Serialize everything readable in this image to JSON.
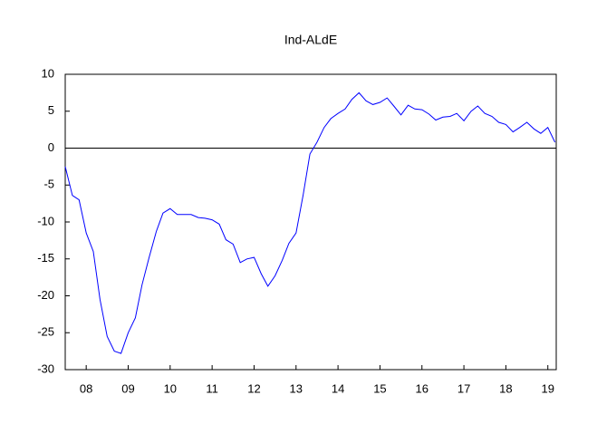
{
  "chart_data": {
    "type": "line",
    "title": "Ind-ALdE",
    "x": [
      2008,
      2008.17,
      2008.33,
      2008.5,
      2008.67,
      2008.83,
      2009,
      2009.17,
      2009.33,
      2009.5,
      2009.67,
      2009.83,
      2010,
      2010.17,
      2010.33,
      2010.5,
      2010.67,
      2010.83,
      2011,
      2011.17,
      2011.33,
      2011.5,
      2011.67,
      2011.83,
      2012,
      2012.17,
      2012.33,
      2012.5,
      2012.67,
      2012.83,
      2013,
      2013.17,
      2013.33,
      2013.5,
      2013.67,
      2013.83,
      2014,
      2014.17,
      2014.33,
      2014.5,
      2014.67,
      2014.83,
      2015,
      2015.17,
      2015.33,
      2015.5,
      2015.67,
      2015.83,
      2016,
      2016.17,
      2016.33,
      2016.5,
      2016.67,
      2016.83,
      2017,
      2017.17,
      2017.33,
      2017.5,
      2017.67,
      2017.83,
      2018,
      2018.17,
      2018.33,
      2018.5,
      2018.67,
      2018.83,
      2019,
      2019.17,
      2019.33,
      2019.5,
      2019.67
    ],
    "series": [
      {
        "name": "Ind-ALdE",
        "color": "#0000ff",
        "values": [
          -2.5,
          -6.4,
          -7,
          -11.5,
          -14,
          -20.5,
          -25.5,
          -27.5,
          -27.8,
          -25,
          -23,
          -18.5,
          -14.8,
          -11.3,
          -8.8,
          -8.2,
          -9,
          -9,
          -9,
          -9.4,
          -9.5,
          -9.7,
          -10.3,
          -12.4,
          -13,
          -15.5,
          -15,
          -14.8,
          -17,
          -18.7,
          -17.3,
          -15.2,
          -12.9,
          -11.5,
          -6.3,
          -0.8,
          0.8,
          2.8,
          4,
          4.7,
          5.3,
          6.6,
          7.5,
          6.4,
          5.9,
          6.2,
          6.8,
          5.7,
          4.5,
          5.8,
          5.3,
          5.2,
          4.6,
          3.8,
          4.2,
          4.3,
          4.7,
          3.7,
          5,
          5.7,
          4.7,
          4.3,
          3.5,
          3.2,
          2.2,
          2.8,
          3.5,
          2.6,
          2,
          2.8,
          0.8
        ]
      }
    ],
    "xlim": [
      2008,
      2019.7
    ],
    "xticks": [
      {
        "value": 2008.5,
        "label": "08"
      },
      {
        "value": 2009.5,
        "label": "09"
      },
      {
        "value": 2010.5,
        "label": "10"
      },
      {
        "value": 2011.5,
        "label": "11"
      },
      {
        "value": 2012.5,
        "label": "12"
      },
      {
        "value": 2013.5,
        "label": "13"
      },
      {
        "value": 2014.5,
        "label": "14"
      },
      {
        "value": 2015.5,
        "label": "15"
      },
      {
        "value": 2016.5,
        "label": "16"
      },
      {
        "value": 2017.5,
        "label": "17"
      },
      {
        "value": 2018.5,
        "label": "18"
      },
      {
        "value": 2019.5,
        "label": "19"
      }
    ],
    "ylim": [
      -30,
      10
    ],
    "yticks": [
      10,
      5,
      0,
      -5,
      -10,
      -15,
      -20,
      -25,
      -30
    ],
    "zero_line": true
  }
}
